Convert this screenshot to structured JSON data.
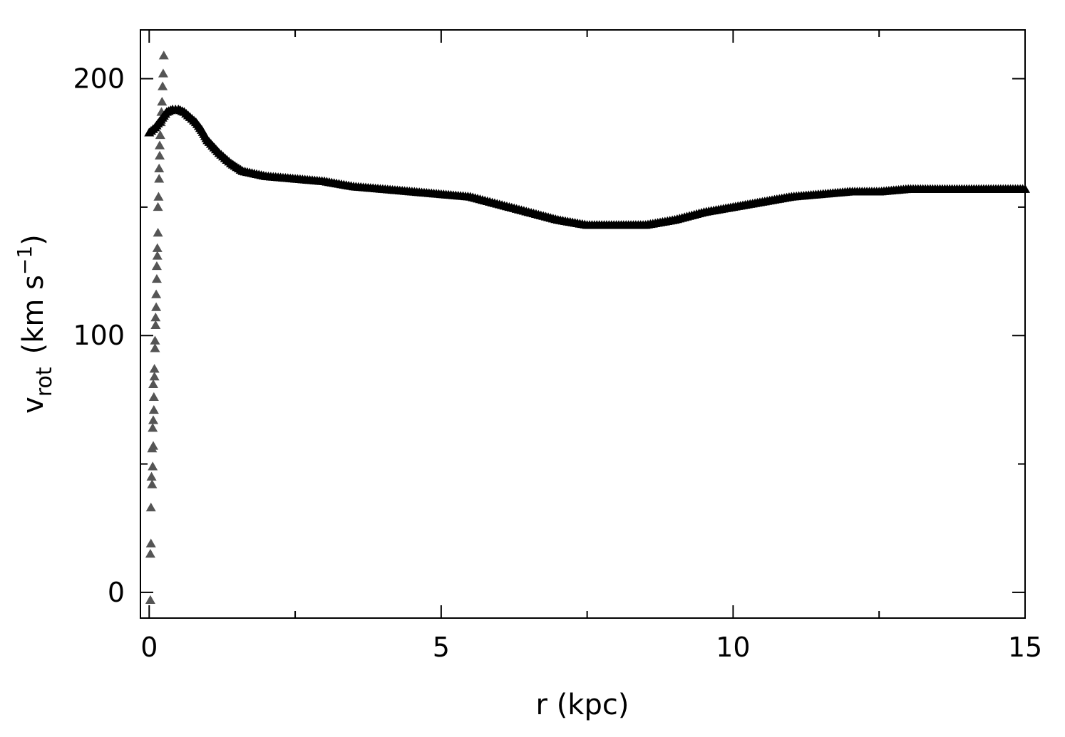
{
  "chart_data": {
    "type": "scatter",
    "title": "",
    "xlabel": "r (kpc)",
    "ylabel": {
      "main": "v",
      "subscript": "rot",
      "unit_pre": "(km s",
      "unit_sup": "−1",
      "unit_post": ")"
    },
    "xlim": [
      -0.15,
      15
    ],
    "ylim": [
      -10,
      219
    ],
    "x_ticks": [
      0,
      5,
      10,
      15
    ],
    "x_tick_labels": [
      "0",
      "5",
      "10",
      "15"
    ],
    "y_ticks": [
      0,
      100,
      200
    ],
    "y_tick_labels": [
      "0",
      "100",
      "200"
    ],
    "x_minor_step": 2.5,
    "y_minor_step": 50,
    "grid": false,
    "legend": "none",
    "series": [
      {
        "marker": "triangle",
        "color": "#555555",
        "x": [
          0.02,
          0.02,
          0.03,
          0.03,
          0.05,
          0.04,
          0.06,
          0.05,
          0.07,
          0.06,
          0.07,
          0.08,
          0.08,
          0.07,
          0.09,
          0.09,
          0.1,
          0.1,
          0.11,
          0.11,
          0.12,
          0.12,
          0.13,
          0.13,
          0.14,
          0.14,
          0.15,
          0.15,
          0.16,
          0.17,
          0.17,
          0.18,
          0.18,
          0.19,
          0.2,
          0.21,
          0.22,
          0.23,
          0.24,
          0.25
        ],
        "y": [
          -3,
          15,
          19,
          33,
          42,
          45,
          49,
          56,
          57,
          64,
          67,
          71,
          76,
          81,
          84,
          87,
          95,
          98,
          104,
          107,
          111,
          116,
          122,
          127,
          131,
          134,
          140,
          150,
          154,
          161,
          165,
          170,
          174,
          178,
          183,
          187,
          191,
          197,
          202,
          209
        ]
      },
      {
        "marker": "triangle",
        "color": "#000000",
        "x": [
          0.0,
          0.1,
          0.2,
          0.3,
          0.4,
          0.5,
          0.6,
          0.7,
          0.8,
          0.9,
          1.0,
          1.2,
          1.4,
          1.6,
          1.8,
          2.0,
          2.5,
          3.0,
          3.5,
          4.0,
          4.5,
          5.0,
          5.5,
          6.0,
          6.5,
          7.0,
          7.5,
          8.0,
          8.5,
          9.0,
          9.5,
          10.0,
          10.5,
          11.0,
          11.5,
          12.0,
          12.5,
          13.0,
          13.5,
          14.0,
          14.5,
          15.0
        ],
        "y": [
          179,
          181,
          184,
          187,
          188,
          188,
          187,
          185,
          183,
          180,
          176,
          171,
          167,
          164,
          163,
          162,
          161,
          160,
          158,
          157,
          156,
          155,
          154,
          151,
          148,
          145,
          143,
          143,
          143,
          145,
          148,
          150,
          152,
          154,
          155,
          156,
          156,
          157,
          157,
          157,
          157,
          157
        ]
      }
    ]
  }
}
